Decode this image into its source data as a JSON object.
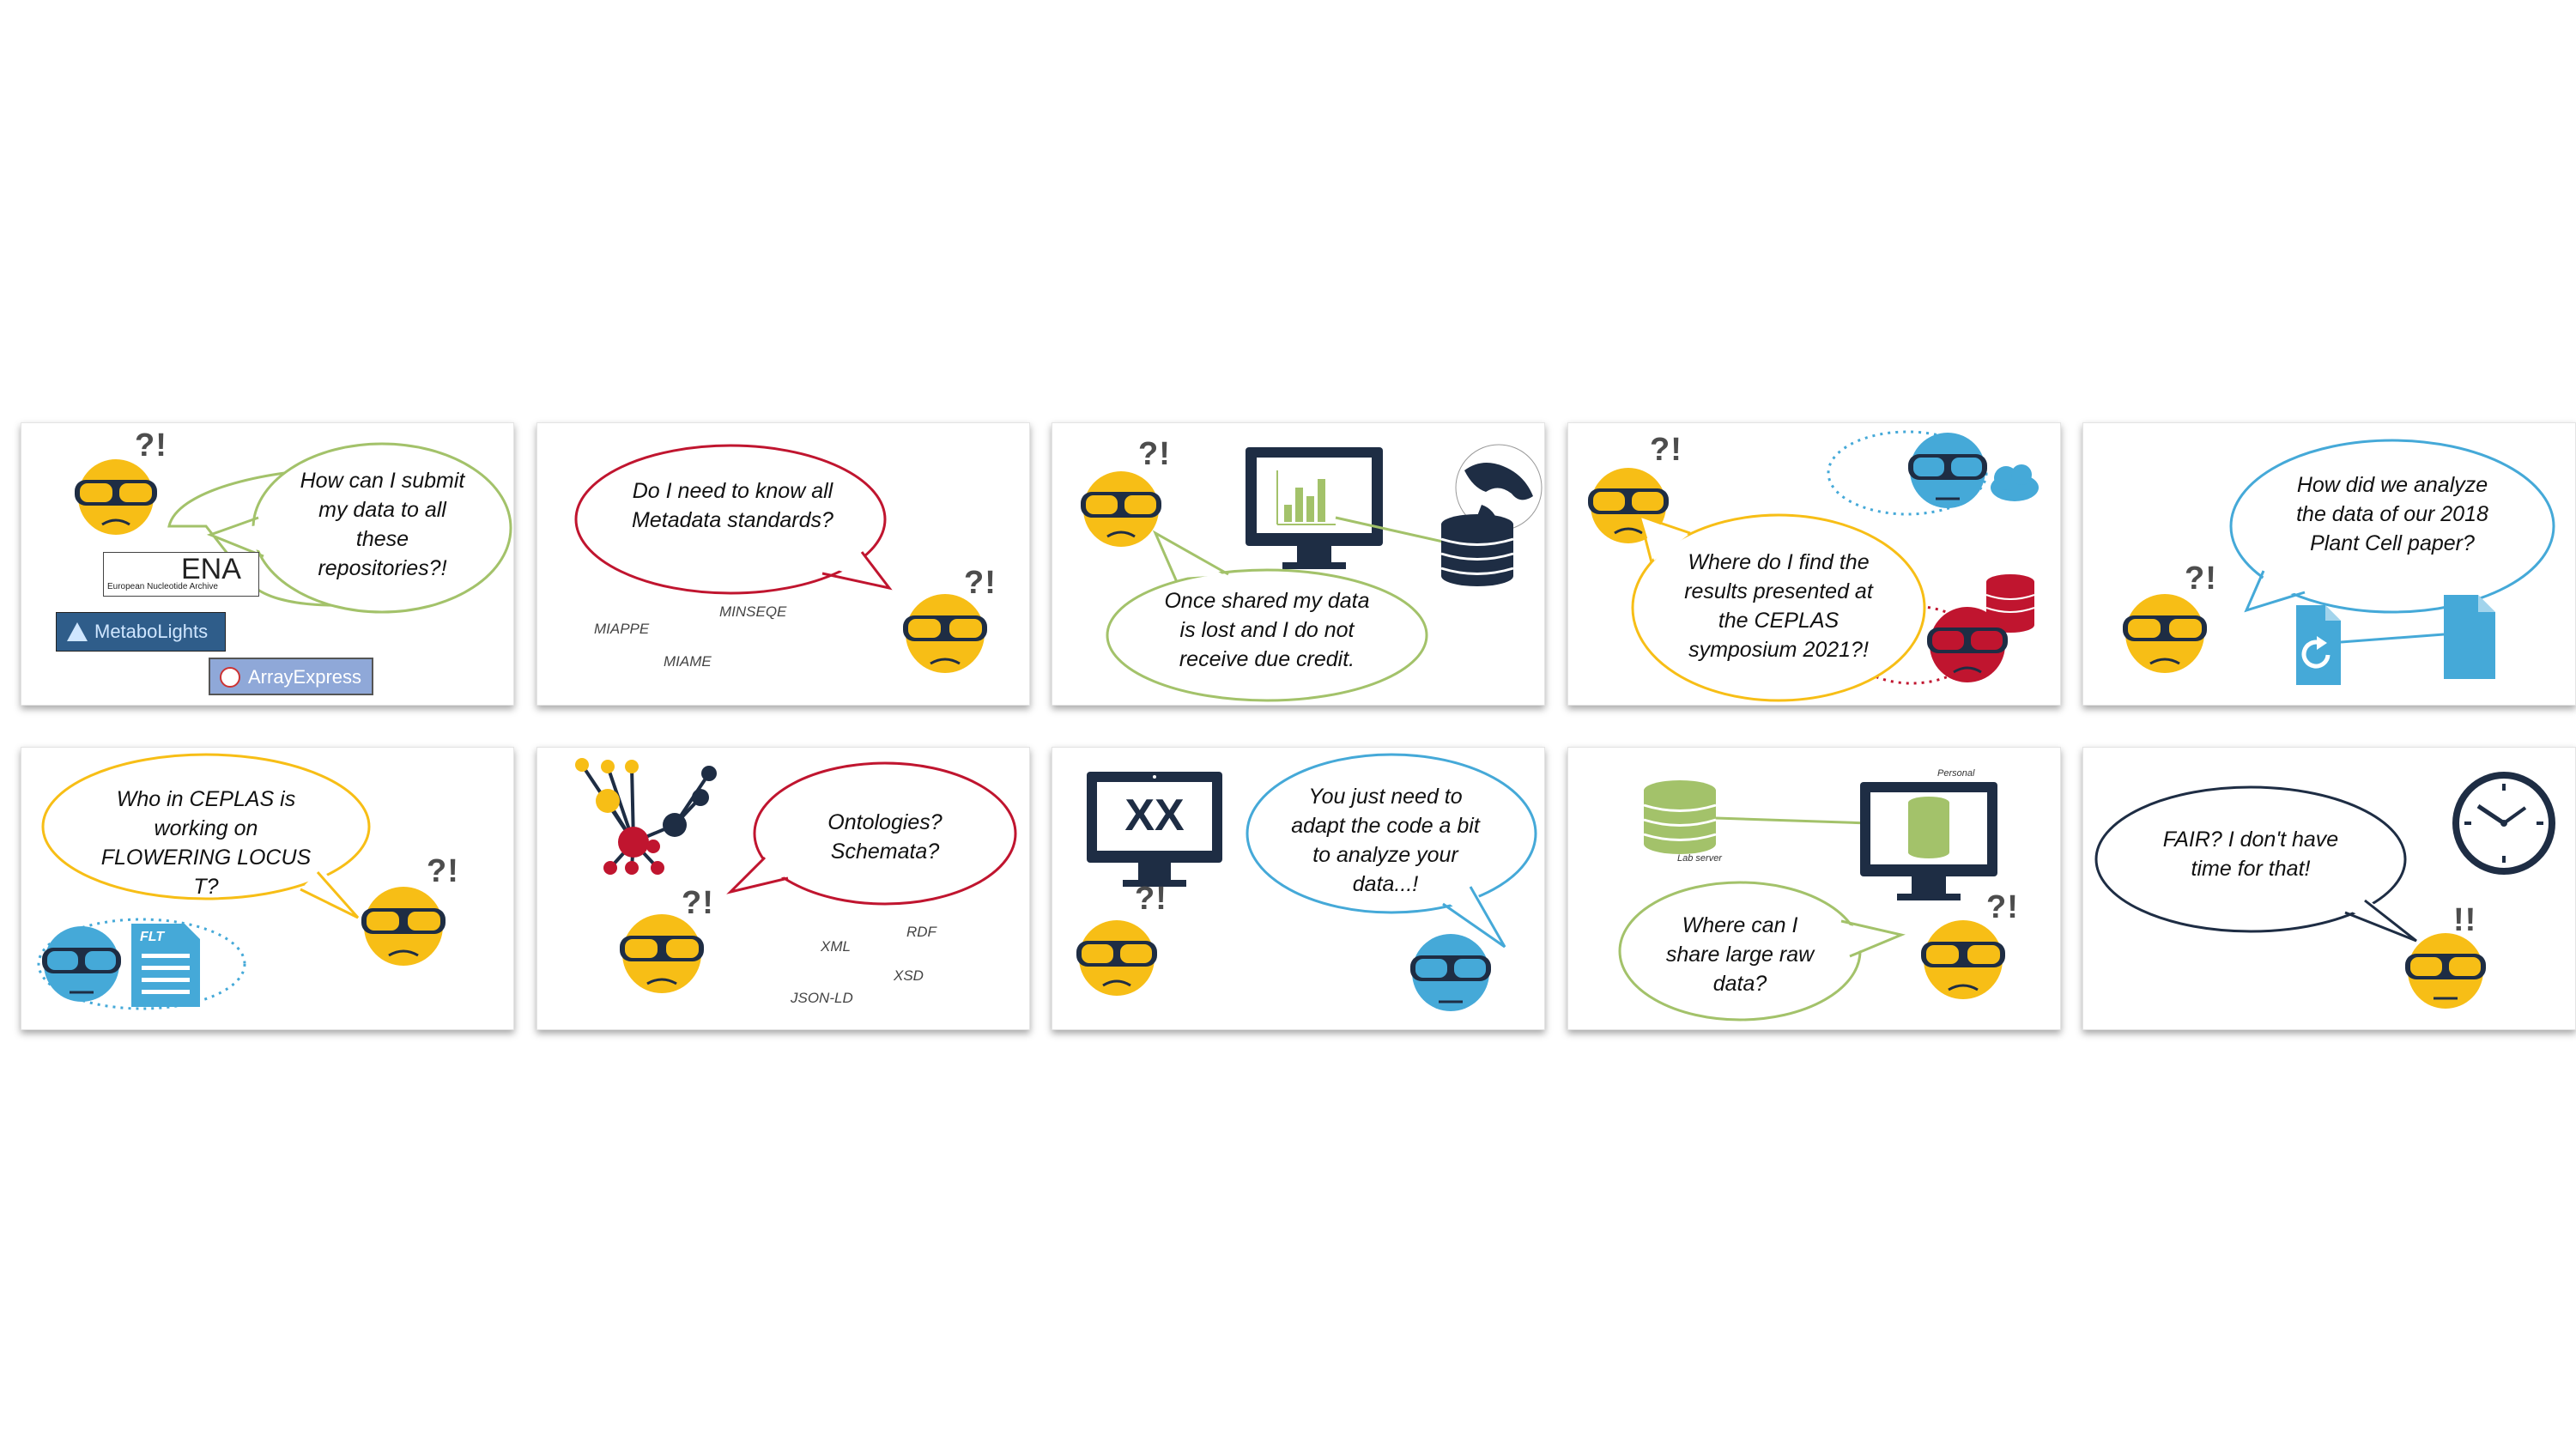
{
  "panels": [
    {
      "question": "How can I submit my data to all these repositories?!",
      "exclaim": "?!",
      "logos": {
        "ena": "ENA",
        "ena_sub": "European Nucleotide Archive",
        "metabolights": "MetaboLights",
        "arrayexpress": "ArrayExpress"
      }
    },
    {
      "question": "Do I need to know all Metadata standards?",
      "exclaim": "?!",
      "labels": [
        "MIAPPE",
        "MINSEQE",
        "MIAME"
      ]
    },
    {
      "question": "Once shared my data is lost and I do not receive due credit.",
      "exclaim": "?!"
    },
    {
      "question": "Where do I find the results presented at the CEPLAS symposium 2021?!",
      "exclaim": "?!"
    },
    {
      "question": "How did we analyze the data of our 2018 Plant Cell paper?",
      "exclaim": "?!"
    },
    {
      "question": "Who in CEPLAS is working on FLOWERING LOCUS T?",
      "exclaim": "?!",
      "file_label": "FLT"
    },
    {
      "question": "Ontologies? Schemata?",
      "exclaim": "?!",
      "labels": [
        "XML",
        "RDF",
        "XSD",
        "JSON-LD"
      ]
    },
    {
      "question": "You just need to adapt the code a bit to analyze your data...!",
      "exclaim": "?!",
      "screen_text": "XX"
    },
    {
      "question": "Where can I share large raw data?",
      "exclaim": "?!",
      "labels": [
        "Lab server",
        "Personal"
      ]
    },
    {
      "question": "FAIR? I don't have time for that!",
      "exclaim": "!!"
    }
  ],
  "colors": {
    "yellow": "#f7be16",
    "blue": "#45a9d8",
    "red": "#c0152f",
    "green": "#a3c26a",
    "navy": "#1e2d44"
  }
}
